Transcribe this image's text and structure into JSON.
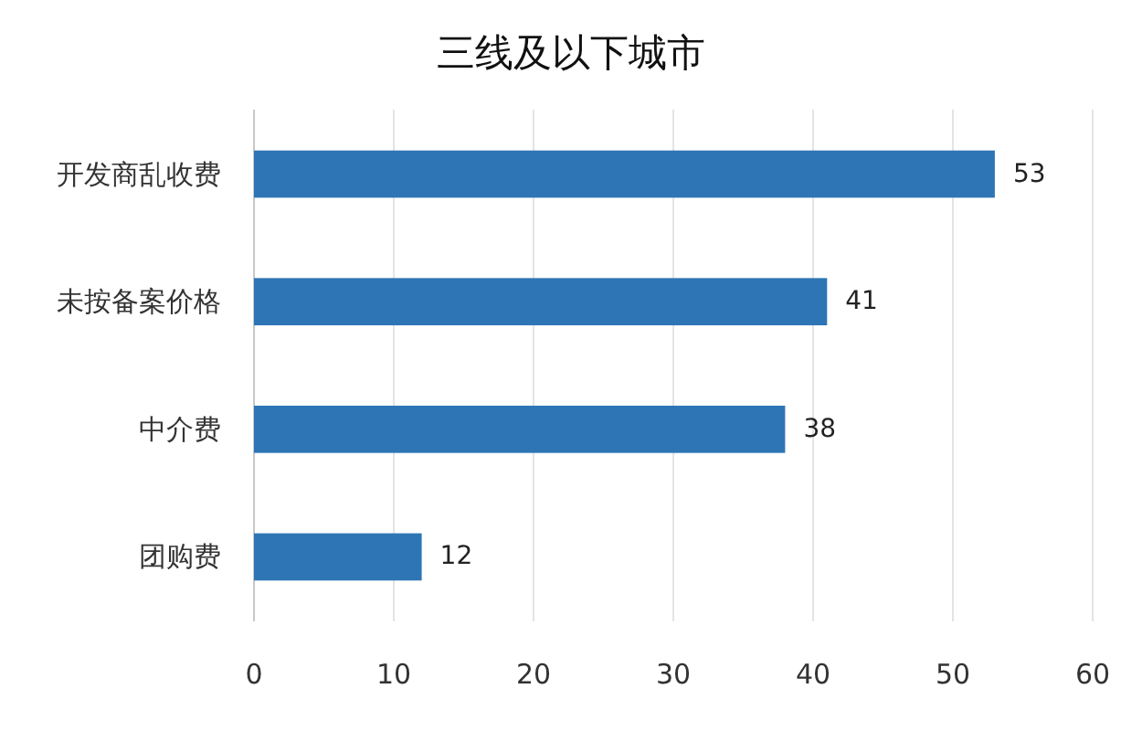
{
  "chart_data": {
    "type": "bar",
    "orientation": "horizontal",
    "title": "三线及以下城市",
    "categories": [
      "开发商乱收费",
      "未按备案价格",
      "中介费",
      "团购费"
    ],
    "values": [
      53,
      41,
      38,
      12
    ],
    "color": "#2e75b6",
    "xlim": [
      0,
      60
    ],
    "xticks": [
      0,
      10,
      20,
      30,
      40,
      50,
      60
    ],
    "grid": "x",
    "data_labels": true
  }
}
